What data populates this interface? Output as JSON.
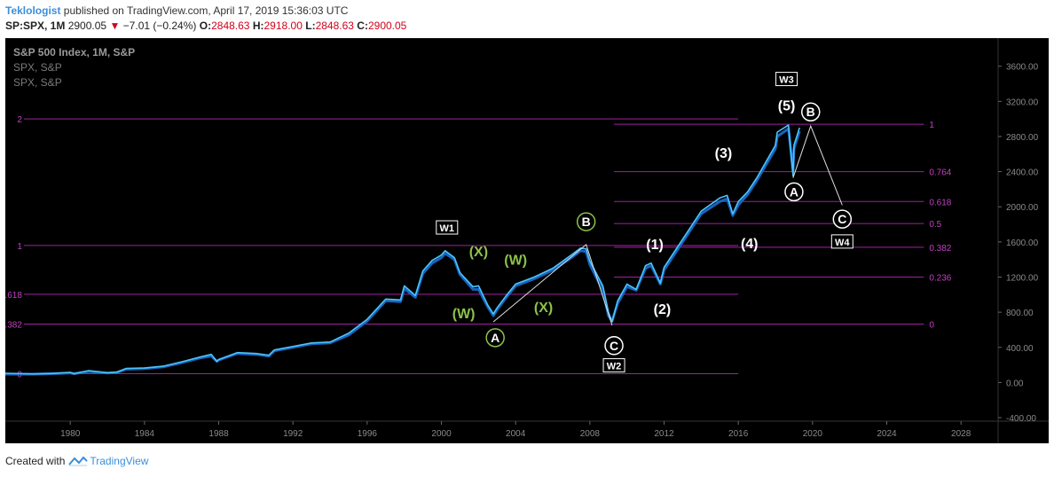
{
  "header": {
    "author": "Teklologist",
    "published_text": "published on TradingView.com, April 17, 2019 15:36:03 UTC",
    "symbol": "SP:SPX, 1M",
    "price": "2900.05",
    "change_arrow": "▼",
    "change": "−7.01 (−0.24%)",
    "open_label": "O:",
    "open": "2848.63",
    "high_label": "H:",
    "high": "2918.00",
    "low_label": "L:",
    "low": "2848.63",
    "close_label": "C:",
    "close": "2900.05"
  },
  "legend": {
    "title": "S&P 500 Index, 1M, S&P",
    "line2": "SPX, S&P",
    "line3": "SPX, S&P"
  },
  "footer": {
    "created_with": "Created with",
    "brand": "TradingView"
  },
  "colors": {
    "background": "#000000",
    "price_line": "#4fc3f7",
    "price_line_dark": "#1565c0",
    "fib_line": "#a020a0",
    "fib_label": "#c040c0",
    "wave_white": "#ffffff",
    "wave_green": "#8bc34a"
  },
  "chart_data": {
    "type": "line",
    "title": "S&P 500 Index, 1M, S&P",
    "xlim": [
      1976.5,
      2030
    ],
    "ylim": [
      -440,
      3920
    ],
    "x_ticks": [
      "1980",
      "1984",
      "1988",
      "1992",
      "1996",
      "2000",
      "2004",
      "2008",
      "2012",
      "2016",
      "2020",
      "2024",
      "2028"
    ],
    "x_tick_values": [
      1980,
      1984,
      1988,
      1992,
      1996,
      2000,
      2004,
      2008,
      2012,
      2016,
      2020,
      2024,
      2028
    ],
    "y_ticks": [
      "3600.00",
      "3200.00",
      "2800.00",
      "2400.00",
      "2000.00",
      "1600.00",
      "1200.00",
      "800.00",
      "400.00",
      "0.00",
      "-400.00"
    ],
    "y_tick_values": [
      3600,
      3200,
      2800,
      2400,
      2000,
      1600,
      1200,
      800,
      400,
      0,
      -400
    ],
    "series": [
      {
        "x": [
          1976.5,
          1978,
          1979,
          1980,
          1980.2,
          1981,
          1982,
          1982.5,
          1983,
          1984,
          1985,
          1986,
          1987,
          1987.6,
          1987.9,
          1988,
          1989,
          1990,
          1990.7,
          1991,
          1992,
          1993,
          1994,
          1995,
          1996,
          1997,
          1997.8,
          1998,
          1998.6,
          1999,
          1999.5,
          2000,
          2000.2,
          2000.7,
          2001,
          2001.7,
          2002,
          2002.5,
          2002.8,
          2003,
          2003.5,
          2004,
          2005,
          2006,
          2007,
          2007.5,
          2007.8,
          2008,
          2008.7,
          2009,
          2009.2,
          2009.5,
          2010,
          2010.5,
          2011,
          2011.3,
          2011.8,
          2012,
          2013,
          2014,
          2015,
          2015.4,
          2015.7,
          2016,
          2016.5,
          2017,
          2018,
          2018.1,
          2018.7,
          2018.95,
          2019,
          2019.3
        ],
        "values": [
          105,
          98,
          103,
          115,
          100,
          135,
          110,
          118,
          160,
          165,
          185,
          235,
          290,
          320,
          240,
          260,
          340,
          330,
          310,
          370,
          410,
          450,
          460,
          560,
          720,
          950,
          940,
          1100,
          990,
          1270,
          1390,
          1450,
          1500,
          1420,
          1250,
          1090,
          1100,
          880,
          780,
          850,
          990,
          1120,
          1200,
          1300,
          1450,
          1530,
          1520,
          1380,
          1100,
          800,
          690,
          930,
          1120,
          1060,
          1330,
          1360,
          1130,
          1310,
          1630,
          1950,
          2100,
          2130,
          1920,
          2060,
          2170,
          2330,
          2700,
          2850,
          2930,
          2350,
          2700,
          2900
        ],
        "smooth_values": [
          95,
          95,
          100,
          108,
          100,
          125,
          108,
          112,
          150,
          158,
          178,
          225,
          280,
          300,
          240,
          255,
          330,
          320,
          300,
          360,
          400,
          440,
          450,
          540,
          700,
          930,
          920,
          1070,
          970,
          1240,
          1360,
          1420,
          1470,
          1400,
          1230,
          1060,
          1060,
          860,
          760,
          830,
          970,
          1100,
          1180,
          1280,
          1420,
          1500,
          1490,
          1340,
          1050,
          760,
          700,
          900,
          1090,
          1050,
          1300,
          1330,
          1120,
          1280,
          1600,
          1920,
          2060,
          2090,
          1900,
          2020,
          2140,
          2300,
          2660,
          2800,
          2890,
          2400,
          2660,
          2860
        ]
      }
    ],
    "fib_left": {
      "levels": [
        2,
        1,
        0.618,
        0.382,
        0
      ],
      "labels": [
        "2",
        "1",
        "0.618",
        "0.382",
        "0"
      ],
      "prices": [
        3000,
        1560,
        1005,
        665,
        100
      ],
      "x_start": 1977.5,
      "x_end": 2016
    },
    "fib_right": {
      "levels": [
        1,
        0.764,
        0.618,
        0.5,
        0.382,
        0.236,
        0
      ],
      "labels": [
        "1",
        "0.764",
        "0.618",
        "0.5",
        "0.382",
        "0.236",
        "0"
      ],
      "prices": [
        2940,
        2400,
        2060,
        1810,
        1540,
        1200,
        665
      ],
      "x_start": 2009.3,
      "x_end": 2026
    },
    "wave_path": {
      "x": [
        2002.8,
        2007.8,
        2009.2
      ],
      "values": [
        690,
        1570,
        650
      ]
    },
    "projection_path": {
      "x": [
        2018.95,
        2019.9,
        2021.6
      ],
      "values": [
        2330,
        2920,
        2020
      ]
    },
    "labels": [
      {
        "text": "W1",
        "style": "box",
        "x": 2000.3,
        "y": 1760
      },
      {
        "text": "(X)",
        "style": "green",
        "x": 2002,
        "y": 1500
      },
      {
        "text": "(W)",
        "style": "green",
        "x": 2004,
        "y": 1400
      },
      {
        "text": "(W)",
        "style": "green",
        "x": 2001.2,
        "y": 790
      },
      {
        "text": "(X)",
        "style": "green",
        "x": 2005.5,
        "y": 860
      },
      {
        "text": "A",
        "style": "circle-green",
        "x": 2002.9,
        "y": 510
      },
      {
        "text": "B",
        "style": "circle-green",
        "x": 2007.8,
        "y": 1830
      },
      {
        "text": "C",
        "style": "circle",
        "x": 2009.3,
        "y": 420
      },
      {
        "text": "W2",
        "style": "box",
        "x": 2009.3,
        "y": 190
      },
      {
        "text": "(1)",
        "style": "white",
        "x": 2011.5,
        "y": 1580
      },
      {
        "text": "(2)",
        "style": "white",
        "x": 2011.9,
        "y": 840
      },
      {
        "text": "(3)",
        "style": "white",
        "x": 2015.2,
        "y": 2620
      },
      {
        "text": "(4)",
        "style": "white",
        "x": 2016.6,
        "y": 1590
      },
      {
        "text": "W3",
        "style": "box",
        "x": 2018.6,
        "y": 3450
      },
      {
        "text": "(5)",
        "style": "white",
        "x": 2018.6,
        "y": 3160
      },
      {
        "text": "B",
        "style": "circle",
        "x": 2019.9,
        "y": 3080
      },
      {
        "text": "A",
        "style": "circle",
        "x": 2019.0,
        "y": 2170
      },
      {
        "text": "C",
        "style": "circle",
        "x": 2021.6,
        "y": 1860
      },
      {
        "text": "W4",
        "style": "box",
        "x": 2021.6,
        "y": 1600
      }
    ]
  }
}
